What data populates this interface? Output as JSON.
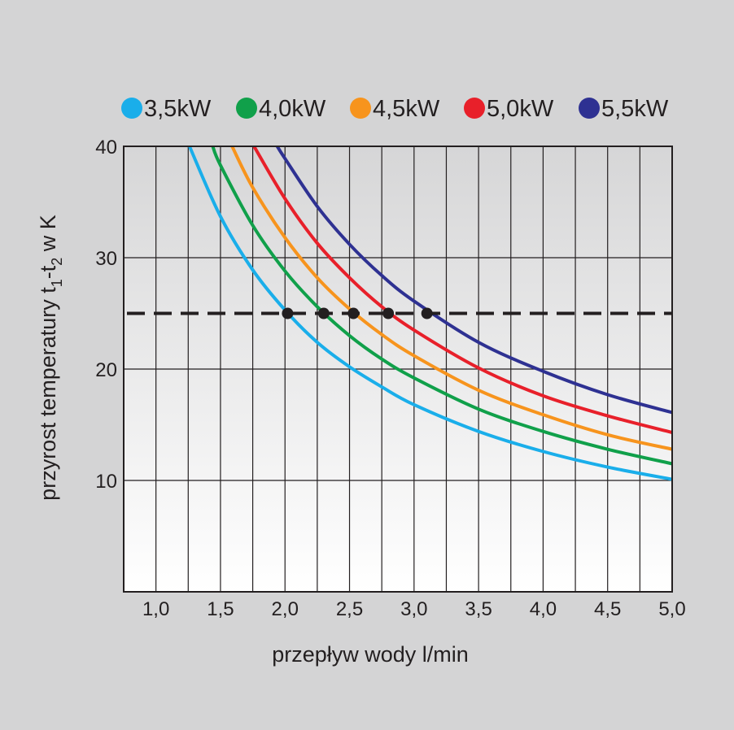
{
  "chart_data": {
    "type": "line",
    "title": "",
    "xlabel": "przepływ wody l/min",
    "ylabel_parts": [
      "przyrost temperatury t",
      "1",
      "-t",
      "2",
      " w K"
    ],
    "xlim": [
      0.75,
      5.0
    ],
    "ylim": [
      0,
      40
    ],
    "x_ticks": [
      1.0,
      1.5,
      2.0,
      2.5,
      3.0,
      3.5,
      4.0,
      4.5,
      5.0
    ],
    "x_tick_labels": [
      "1,0",
      "1,5",
      "2,0",
      "2,5",
      "3,0",
      "3,5",
      "4,0",
      "4,5",
      "5,0"
    ],
    "y_ticks": [
      10,
      20,
      30,
      40
    ],
    "y_tick_labels": [
      "10",
      "20",
      "30",
      "40"
    ],
    "grid": true,
    "legend_position": "top",
    "reference_line": {
      "y": 25,
      "style": "dashed",
      "color": "#231f20"
    },
    "series": [
      {
        "name": "3,5kW",
        "color": "#1aaeea",
        "x": [
          1.26,
          1.5,
          1.75,
          2.0,
          2.25,
          2.5,
          2.75,
          3.0,
          3.5,
          4.0,
          4.5,
          5.0
        ],
        "y": [
          40,
          33.7,
          28.9,
          25.3,
          22.4,
          20.2,
          18.4,
          16.8,
          14.4,
          12.6,
          11.2,
          10.1
        ],
        "marker": {
          "x": 2.02,
          "y": 25
        }
      },
      {
        "name": "4,0kW",
        "color": "#10a04a",
        "x": [
          1.44,
          1.5,
          1.75,
          2.0,
          2.25,
          2.5,
          2.75,
          3.0,
          3.5,
          4.0,
          4.5,
          5.0
        ],
        "y": [
          40,
          38.3,
          32.9,
          28.8,
          25.6,
          23.0,
          20.9,
          19.2,
          16.4,
          14.4,
          12.8,
          11.5
        ],
        "marker": {
          "x": 2.3,
          "y": 25
        }
      },
      {
        "name": "4,5kW",
        "color": "#f7941d",
        "x": [
          1.59,
          1.75,
          2.0,
          2.25,
          2.5,
          2.75,
          3.0,
          3.5,
          4.0,
          4.5,
          5.0
        ],
        "y": [
          40,
          36.3,
          31.8,
          28.2,
          25.4,
          23.1,
          21.2,
          18.1,
          15.9,
          14.1,
          12.8
        ],
        "marker": {
          "x": 2.53,
          "y": 25
        }
      },
      {
        "name": "5,0kW",
        "color": "#e8202a",
        "x": [
          1.76,
          2.0,
          2.25,
          2.5,
          2.75,
          3.0,
          3.5,
          4.0,
          4.5,
          5.0
        ],
        "y": [
          40,
          35.3,
          31.3,
          28.2,
          25.6,
          23.5,
          20.1,
          17.6,
          15.8,
          14.3
        ],
        "marker": {
          "x": 2.8,
          "y": 25
        }
      },
      {
        "name": "5,5kW",
        "color": "#2e3192",
        "x": [
          1.94,
          2.0,
          2.25,
          2.5,
          2.75,
          3.0,
          3.5,
          4.0,
          4.5,
          5.0
        ],
        "y": [
          40,
          38.9,
          34.6,
          31.2,
          28.4,
          26.1,
          22.4,
          19.8,
          17.7,
          16.1
        ],
        "marker": {
          "x": 3.1,
          "y": 25
        }
      }
    ]
  }
}
